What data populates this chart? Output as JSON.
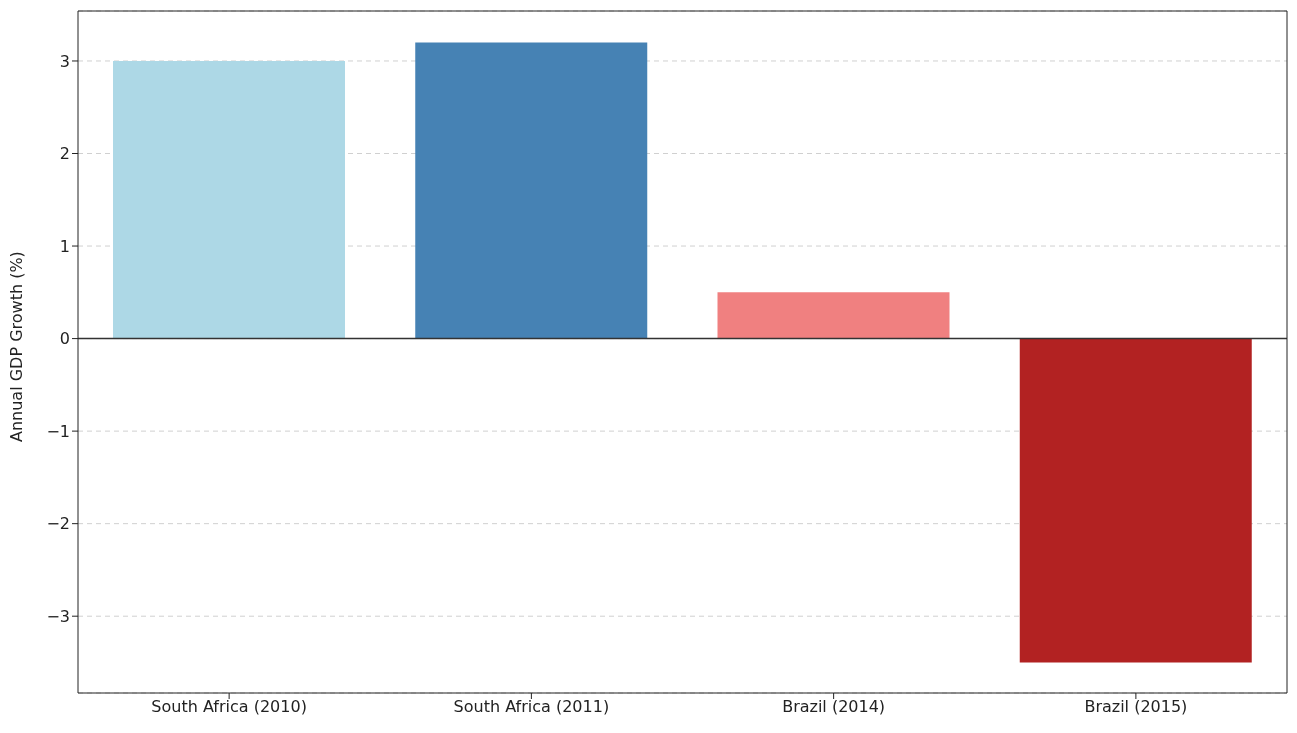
{
  "chart_data": {
    "type": "bar",
    "ylabel": "Annual GDP Growth (%)",
    "categories": [
      "South Africa (2010)",
      "South Africa (2011)",
      "Brazil (2014)",
      "Brazil (2015)"
    ],
    "values": [
      3.0,
      3.2,
      0.5,
      -3.5
    ],
    "colors": [
      "#add8e6",
      "#4682b4",
      "#f08080",
      "#b22222"
    ],
    "ylim": [
      -3.83,
      3.54
    ],
    "yticks": [
      -3,
      -2,
      -1,
      0,
      1,
      2,
      3
    ],
    "grid": "y",
    "ref_lines": [
      {
        "axis": "y",
        "value": 0,
        "color": "#333333"
      }
    ]
  }
}
